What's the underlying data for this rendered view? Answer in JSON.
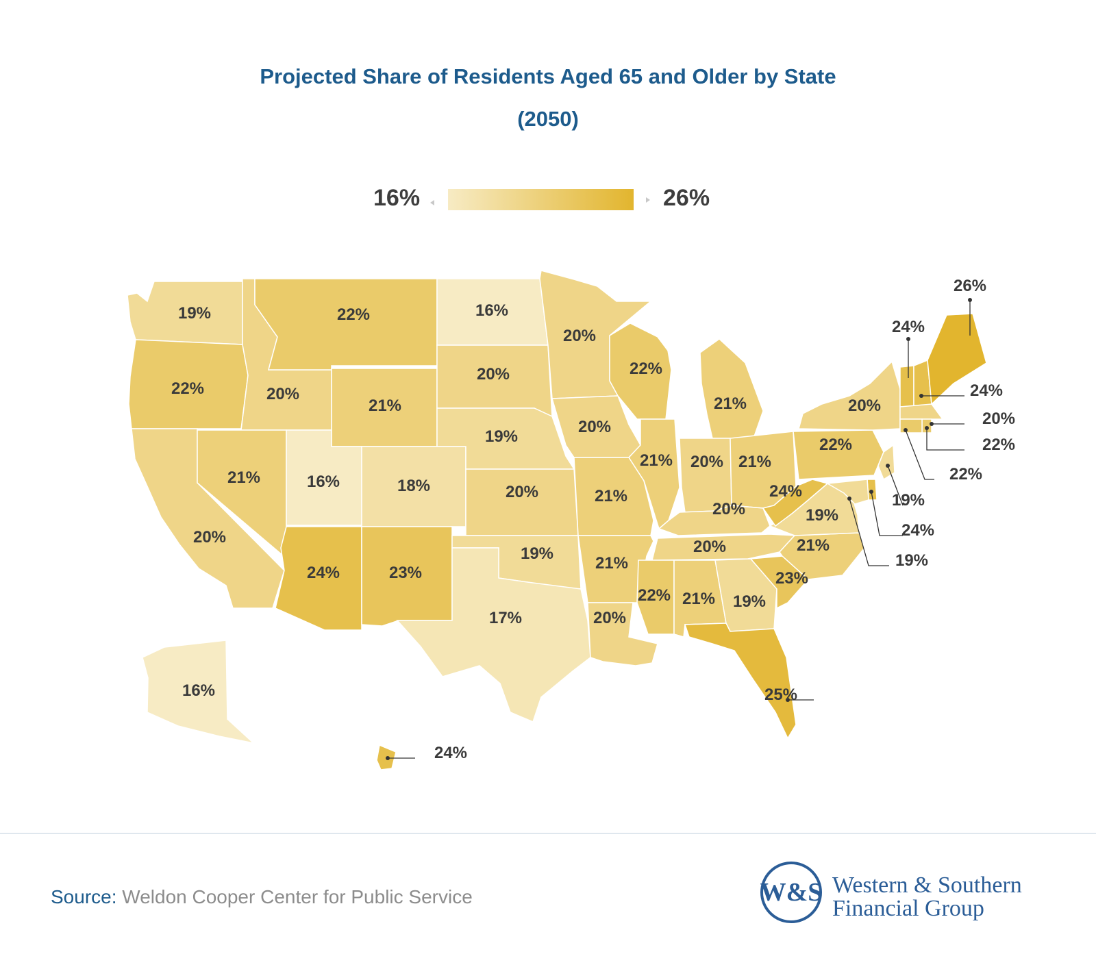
{
  "title_line1": "Projected Share of Residents Aged 65 and Older by State",
  "title_line2": "(2050)",
  "legend": {
    "min_label": "16%",
    "max_label": "26%",
    "min": 16,
    "max": 26,
    "color_low": "#f7ebc4",
    "color_high": "#e2b52e"
  },
  "chart_data": {
    "type": "choropleth",
    "title": "Projected Share of Residents Aged 65 and Older by State (2050)",
    "unit": "%",
    "states": [
      {
        "state": "WA",
        "value": 19
      },
      {
        "state": "OR",
        "value": 22
      },
      {
        "state": "CA",
        "value": 20
      },
      {
        "state": "ID",
        "value": 20
      },
      {
        "state": "NV",
        "value": 21
      },
      {
        "state": "MT",
        "value": 22
      },
      {
        "state": "WY",
        "value": 21
      },
      {
        "state": "UT",
        "value": 16
      },
      {
        "state": "AZ",
        "value": 24
      },
      {
        "state": "CO",
        "value": 18
      },
      {
        "state": "NM",
        "value": 23
      },
      {
        "state": "ND",
        "value": 16
      },
      {
        "state": "SD",
        "value": 20
      },
      {
        "state": "NE",
        "value": 19
      },
      {
        "state": "KS",
        "value": 20
      },
      {
        "state": "OK",
        "value": 19
      },
      {
        "state": "TX",
        "value": 17
      },
      {
        "state": "MN",
        "value": 20
      },
      {
        "state": "IA",
        "value": 20
      },
      {
        "state": "MO",
        "value": 21
      },
      {
        "state": "AR",
        "value": 21
      },
      {
        "state": "LA",
        "value": 20
      },
      {
        "state": "WI",
        "value": 22
      },
      {
        "state": "IL",
        "value": 21
      },
      {
        "state": "MI",
        "value": 21
      },
      {
        "state": "IN",
        "value": 20
      },
      {
        "state": "OH",
        "value": 21
      },
      {
        "state": "KY",
        "value": 20
      },
      {
        "state": "TN",
        "value": 20
      },
      {
        "state": "MS",
        "value": 22
      },
      {
        "state": "AL",
        "value": 21
      },
      {
        "state": "GA",
        "value": 19
      },
      {
        "state": "FL",
        "value": 25
      },
      {
        "state": "SC",
        "value": 23
      },
      {
        "state": "NC",
        "value": 21
      },
      {
        "state": "VA",
        "value": 19
      },
      {
        "state": "WV",
        "value": 24
      },
      {
        "state": "PA",
        "value": 22
      },
      {
        "state": "NY",
        "value": 20
      },
      {
        "state": "VT",
        "value": 24
      },
      {
        "state": "NH",
        "value": 24
      },
      {
        "state": "ME",
        "value": 26
      },
      {
        "state": "MA",
        "value": 20
      },
      {
        "state": "RI",
        "value": 22
      },
      {
        "state": "CT",
        "value": 22
      },
      {
        "state": "NJ",
        "value": 19
      },
      {
        "state": "DE",
        "value": 24
      },
      {
        "state": "MD",
        "value": 19
      },
      {
        "state": "AK",
        "value": 16
      },
      {
        "state": "HI",
        "value": 24
      }
    ]
  },
  "source": {
    "label": "Source:",
    "text": "Weldon Cooper Center for Public Service"
  },
  "logo": {
    "mark": "W&S",
    "line1": "Western & Southern",
    "line2": "Financial Group"
  }
}
